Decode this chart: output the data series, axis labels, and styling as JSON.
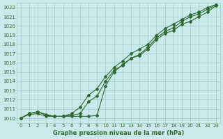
{
  "x": [
    0,
    1,
    2,
    3,
    4,
    5,
    6,
    7,
    8,
    9,
    10,
    11,
    12,
    13,
    14,
    15,
    16,
    17,
    18,
    19,
    20,
    21,
    22,
    23
  ],
  "line1": [
    1010.0,
    1010.4,
    1010.5,
    1010.2,
    1010.2,
    1010.2,
    1010.2,
    1010.2,
    1010.2,
    1010.3,
    1013.5,
    1015.0,
    1015.8,
    1016.5,
    1016.8,
    1017.5,
    1018.5,
    1019.2,
    1019.5,
    1020.2,
    1020.5,
    1021.0,
    1021.5,
    1022.2
  ],
  "line2": [
    1010.0,
    1010.5,
    1010.7,
    1010.4,
    1010.2,
    1010.2,
    1010.3,
    1010.5,
    1011.8,
    1012.4,
    1014.0,
    1015.2,
    1015.7,
    1016.5,
    1016.9,
    1017.7,
    1018.7,
    1019.4,
    1019.8,
    1020.5,
    1021.0,
    1021.3,
    1021.8,
    1022.3
  ],
  "line3": [
    1010.0,
    1010.5,
    1010.7,
    1010.3,
    1010.2,
    1010.2,
    1010.5,
    1011.2,
    1012.5,
    1013.2,
    1014.5,
    1015.5,
    1016.2,
    1017.0,
    1017.5,
    1018.0,
    1019.0,
    1019.7,
    1020.2,
    1020.7,
    1021.2,
    1021.5,
    1022.0,
    1022.3
  ],
  "ylim": [
    1009.5,
    1022.5
  ],
  "xlim": [
    -0.5,
    23.5
  ],
  "yticks": [
    1010,
    1011,
    1012,
    1013,
    1014,
    1015,
    1016,
    1017,
    1018,
    1019,
    1020,
    1021,
    1022
  ],
  "xticks": [
    0,
    1,
    2,
    3,
    4,
    5,
    6,
    7,
    8,
    9,
    10,
    11,
    12,
    13,
    14,
    15,
    16,
    17,
    18,
    19,
    20,
    21,
    22,
    23
  ],
  "line_color": "#2d6a2d",
  "bg_color": "#c8eaea",
  "grid_color": "#a0c8c8",
  "xlabel": "Graphe pression niveau de la mer (hPa)",
  "xlabel_color": "#2d6a2d",
  "tick_color": "#2d6a2d",
  "marker": "D",
  "marker_size": 2.0,
  "linewidth": 0.8
}
